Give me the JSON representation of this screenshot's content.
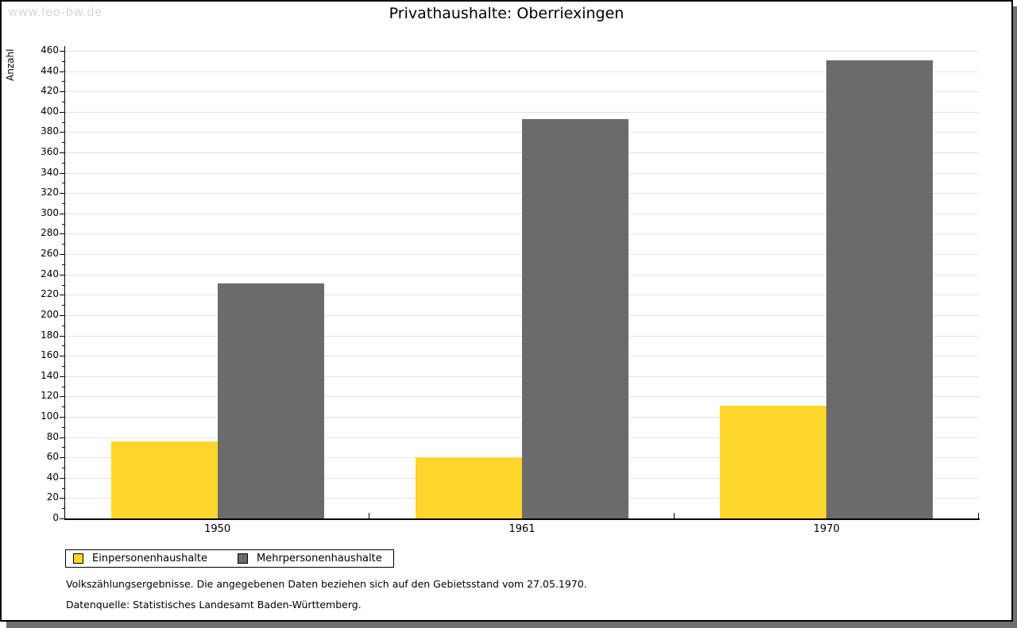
{
  "watermark": "www.leo-bw.de",
  "title": "Privathaushalte: Oberriexingen",
  "chart_data": {
    "type": "bar",
    "title": "Privathaushalte: Oberriexingen",
    "xlabel": "",
    "ylabel": "Anzahl",
    "categories": [
      "1950",
      "1961",
      "1970"
    ],
    "series": [
      {
        "name": "Einpersonenhaushalte",
        "color": "#fdd62c",
        "values": [
          76,
          60,
          111
        ]
      },
      {
        "name": "Mehrpersonenhaushalte",
        "color": "#6b6b6b",
        "values": [
          231,
          393,
          451
        ]
      }
    ],
    "ylim": [
      0,
      460
    ],
    "ytick_step": 20,
    "yminor_step": 10,
    "grid": true,
    "legend_position": "bottom-left"
  },
  "legend": {
    "items": [
      {
        "label": "Einpersonenhaushalte",
        "color": "#fdd62c"
      },
      {
        "label": "Mehrpersonenhaushalte",
        "color": "#6b6b6b"
      }
    ]
  },
  "footnotes": {
    "line1": "Volkszählungsergebnisse. Die angegebenen Daten beziehen sich auf den Gebietsstand vom 27.05.1970.",
    "line2": "Datenquelle: Statistisches Landesamt Baden-Württemberg."
  },
  "colors": {
    "bar_yellow": "#fdd62c",
    "bar_gray": "#6b6b6b",
    "gridline": "#e2e2e2",
    "watermark": "#d7d7d7",
    "shadow": "#6f6f6f"
  }
}
